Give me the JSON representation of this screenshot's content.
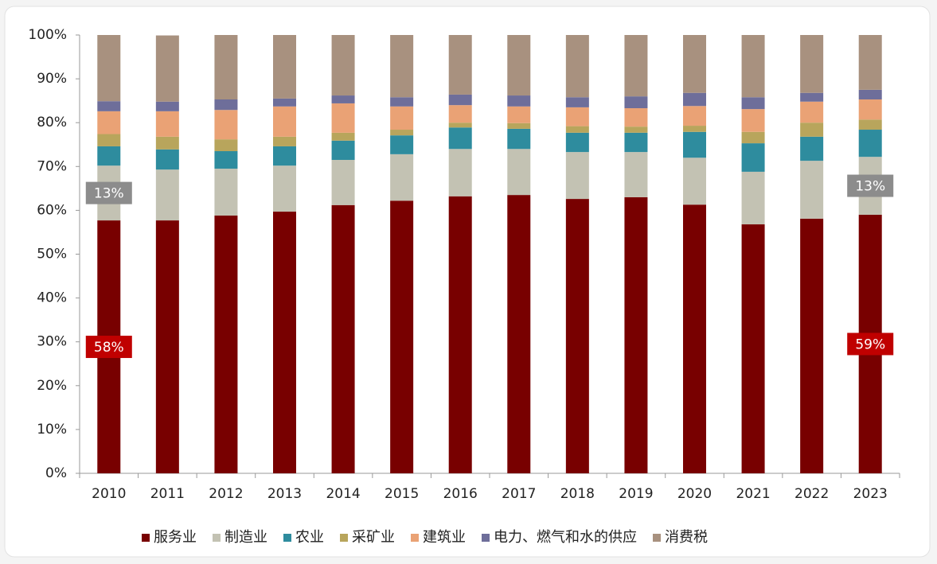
{
  "chart_data": {
    "type": "stacked_bar",
    "categories": [
      "2010",
      "2011",
      "2012",
      "2013",
      "2014",
      "2015",
      "2016",
      "2017",
      "2018",
      "2019",
      "2020",
      "2021",
      "2022",
      "2023"
    ],
    "series": [
      {
        "name": "服务业",
        "color": "#780000",
        "values": [
          57.7,
          57.7,
          58.8,
          59.7,
          61.2,
          62.2,
          63.2,
          63.5,
          62.6,
          63.0,
          61.3,
          56.8,
          58.1,
          59.0
        ],
        "value_labels": [
          "58%",
          null,
          null,
          null,
          null,
          null,
          null,
          null,
          null,
          null,
          null,
          null,
          null,
          "59%"
        ]
      },
      {
        "name": "制造业",
        "color": "#c3c2b3",
        "values": [
          12.5,
          11.6,
          10.7,
          10.5,
          10.3,
          10.6,
          10.8,
          10.5,
          10.7,
          10.3,
          10.7,
          12.0,
          13.2,
          13.2
        ],
        "value_labels": [
          "13%",
          null,
          null,
          null,
          null,
          null,
          null,
          null,
          null,
          null,
          null,
          null,
          null,
          "13%"
        ]
      },
      {
        "name": "农业",
        "color": "#2e8c9e",
        "values": [
          4.4,
          4.6,
          4.0,
          4.4,
          4.4,
          4.3,
          4.9,
          4.6,
          4.4,
          4.4,
          5.9,
          6.5,
          5.5,
          6.2
        ]
      },
      {
        "name": "采矿业",
        "color": "#b8a55c",
        "values": [
          2.8,
          2.9,
          2.7,
          2.2,
          1.8,
          1.3,
          1.1,
          1.3,
          1.5,
          1.4,
          1.4,
          2.6,
          3.2,
          2.3
        ]
      },
      {
        "name": "建筑业",
        "color": "#eaa275",
        "values": [
          5.2,
          5.8,
          6.7,
          6.9,
          6.7,
          5.3,
          4.0,
          3.8,
          4.3,
          4.2,
          4.5,
          5.2,
          4.8,
          4.6
        ]
      },
      {
        "name": "电力、燃气和水的供应",
        "color": "#6e6e9a",
        "values": [
          2.3,
          2.2,
          2.4,
          1.8,
          1.8,
          2.1,
          2.4,
          2.5,
          2.3,
          2.7,
          3.0,
          2.7,
          2.0,
          2.2
        ]
      },
      {
        "name": "消费税",
        "color": "#a8917f",
        "values": [
          15.1,
          15.1,
          14.7,
          14.5,
          13.8,
          14.2,
          13.6,
          13.8,
          14.2,
          14.0,
          13.2,
          14.2,
          13.2,
          12.5
        ]
      }
    ],
    "ylim": [
      0,
      100
    ],
    "yticks": [
      {
        "value": 0,
        "label": "0%"
      },
      {
        "value": 10,
        "label": "10%"
      },
      {
        "value": 20,
        "label": "20%"
      },
      {
        "value": 30,
        "label": "30%"
      },
      {
        "value": 40,
        "label": "40%"
      },
      {
        "value": 50,
        "label": "50%"
      },
      {
        "value": 60,
        "label": "60%"
      },
      {
        "value": 70,
        "label": "70%"
      },
      {
        "value": 80,
        "label": "80%"
      },
      {
        "value": 90,
        "label": "90%"
      },
      {
        "value": 100,
        "label": "100%"
      }
    ],
    "legend": "bottom"
  }
}
